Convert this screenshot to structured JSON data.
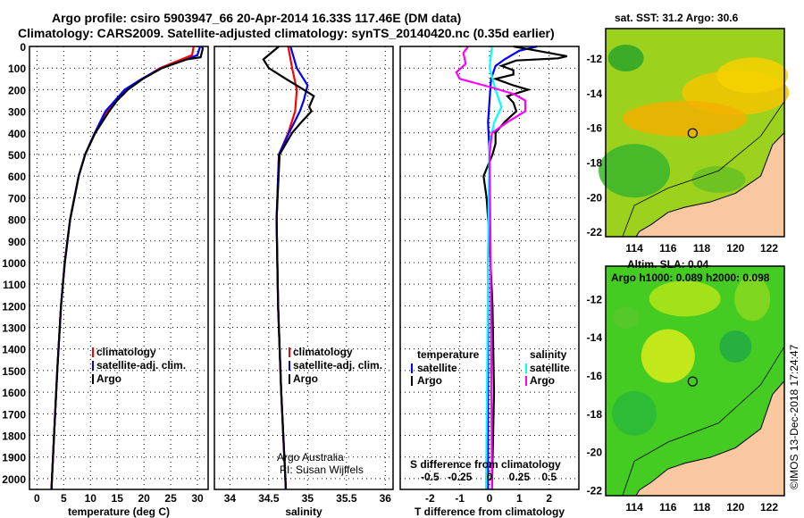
{
  "title_line1": "Argo profile: csiro 5903947_66 20-Apr-2014 16.33S 117.46E (DM data)",
  "title_line2": "Climatology: CARS2009. Satellite-adjusted climatology: synTS_20140420.nc (0.35d earlier)",
  "credit": "©IMOS 13-Dec-2018 17:24:47",
  "colors": {
    "climatology": "#ff0000",
    "satellite": "#0000ff",
    "argo": "#000000",
    "sal_sat": "#00ffff",
    "sal_argo": "#ff00ff",
    "land": "#f9c8a0"
  },
  "chart_data": [
    {
      "type": "line",
      "xlabel": "temperature (deg C)",
      "ylabel": "depth",
      "xlim": [
        -1.4,
        32
      ],
      "ylim": [
        2050,
        0
      ],
      "xticks": [
        "0",
        "5",
        "10",
        "15",
        "20",
        "25",
        "30"
      ],
      "xtickvals": [
        0,
        5,
        10,
        15,
        20,
        25,
        30
      ],
      "yticks": [
        "0",
        "100",
        "200",
        "300",
        "400",
        "500",
        "600",
        "700",
        "800",
        "900",
        "1000",
        "1100",
        "1200",
        "1300",
        "1400",
        "1500",
        "1600",
        "1700",
        "1800",
        "1900",
        "2000"
      ],
      "legend": [
        "climatology",
        "satellite-adj. clim.",
        "Argo"
      ],
      "series": [
        {
          "name": "climatology",
          "color": "#ff0000",
          "depth": [
            0,
            40,
            60,
            100,
            150,
            200,
            300,
            400,
            500,
            600,
            800,
            1000,
            1200,
            1500,
            1800,
            2050
          ],
          "values": [
            29.3,
            29,
            27,
            23,
            19.7,
            16.7,
            13.1,
            10.8,
            9,
            7.8,
            6.2,
            5.2,
            4.5,
            3.8,
            3.2,
            2.7
          ]
        },
        {
          "name": "satellite-adj. clim.",
          "color": "#0000ff",
          "depth": [
            0,
            40,
            60,
            100,
            150,
            200,
            300,
            400,
            500,
            600,
            800,
            1000,
            1200,
            1500,
            1800,
            2050
          ],
          "values": [
            30.5,
            30,
            28,
            23.3,
            19.6,
            16.4,
            12.8,
            10.8,
            9,
            7.8,
            6.2,
            5.2,
            4.5,
            3.8,
            3.2,
            2.7
          ]
        },
        {
          "name": "Argo",
          "color": "#000000",
          "depth": [
            0,
            10,
            50,
            60,
            100,
            150,
            200,
            250,
            300,
            400,
            500,
            600,
            800,
            1000,
            1200,
            1500,
            1800,
            2050
          ],
          "values": [
            30.8,
            31,
            30.6,
            28,
            23.4,
            19.8,
            17,
            15,
            13.5,
            10.9,
            9,
            7.8,
            6.2,
            5.2,
            4.5,
            3.8,
            3.2,
            2.7
          ]
        }
      ]
    },
    {
      "type": "line",
      "xlabel": "salinity",
      "xlim": [
        33.8,
        36.1
      ],
      "xticks": [
        "34",
        "34.5",
        "35",
        "35.5",
        "36"
      ],
      "xtickvals": [
        34,
        34.5,
        35,
        35.5,
        36
      ],
      "legend": [
        "climatology",
        "satellite-adj. clim.",
        "Argo"
      ],
      "annotation": [
        "Argo Australia",
        "PI: Susan Wijffels"
      ],
      "series": [
        {
          "name": "climatology",
          "color": "#ff0000",
          "depth": [
            0,
            100,
            200,
            300,
            400,
            500,
            800,
            1200,
            1600,
            2050
          ],
          "values": [
            34.75,
            34.8,
            34.86,
            34.84,
            34.75,
            34.63,
            34.6,
            34.62,
            34.66,
            34.72
          ]
        },
        {
          "name": "satellite-adj. clim.",
          "color": "#0000ff",
          "depth": [
            0,
            100,
            180,
            250,
            300,
            400,
            500,
            800,
            1200,
            1600,
            2050
          ],
          "values": [
            34.78,
            34.86,
            35.0,
            34.95,
            34.9,
            34.76,
            34.63,
            34.6,
            34.62,
            34.66,
            34.72
          ]
        },
        {
          "name": "Argo",
          "color": "#000000",
          "depth": [
            0,
            60,
            100,
            150,
            200,
            230,
            280,
            300,
            350,
            400,
            500,
            800,
            1200,
            1600,
            2050
          ],
          "values": [
            34.63,
            34.43,
            34.5,
            34.72,
            34.95,
            35.08,
            35.02,
            35.05,
            34.92,
            34.8,
            34.64,
            34.6,
            34.62,
            34.66,
            34.72
          ]
        }
      ]
    },
    {
      "type": "line",
      "xlabel": "T difference from climatology",
      "x2label": "S difference from climatology",
      "xlim": [
        -3,
        3
      ],
      "x2lim": [
        -0.75,
        0.75
      ],
      "xticks": [
        "-2",
        "-1",
        "0",
        "1",
        "2"
      ],
      "xtickvals": [
        -2,
        -1,
        0,
        1,
        2
      ],
      "x2ticks": [
        "-0.5",
        "-0.25",
        "0",
        "0.25",
        "0.5"
      ],
      "x2tickvals": [
        -0.5,
        -0.25,
        0,
        0.25,
        0.5
      ],
      "legend_temperature": {
        "title": "temperature",
        "items": [
          "satellite",
          "Argo"
        ]
      },
      "legend_salinity": {
        "title": "salinity",
        "items": [
          "satellite",
          "Argo"
        ]
      },
      "series": [
        {
          "name": "T satellite",
          "axis": "T",
          "color": "#0000ff",
          "depth": [
            0,
            20,
            60,
            90,
            150,
            250,
            350,
            500,
            1000,
            2050
          ],
          "values": [
            1.6,
            1.0,
            0.5,
            0.2,
            0.05,
            0.0,
            -0.05,
            0.0,
            -0.05,
            -0.05
          ]
        },
        {
          "name": "T Argo",
          "axis": "T",
          "color": "#000000",
          "depth": [
            0,
            20,
            45,
            55,
            65,
            90,
            110,
            130,
            150,
            180,
            200,
            230,
            260,
            300,
            350,
            400,
            450,
            500,
            600,
            700,
            900,
            1200,
            1600,
            2050
          ],
          "values": [
            0.8,
            1.6,
            2.6,
            2.3,
            0.9,
            0.4,
            0.8,
            0.8,
            0.2,
            0.8,
            1.3,
            0.6,
            0.8,
            0.9,
            0.5,
            0.2,
            0.2,
            0.1,
            -0.2,
            -0.1,
            0.0,
            0.1,
            0.15,
            0.08
          ]
        },
        {
          "name": "S satellite",
          "axis": "S",
          "color": "#00ffff",
          "depth": [
            0,
            100,
            200,
            280,
            350,
            450,
            800,
            1500,
            2050
          ],
          "values": [
            0.02,
            0.0,
            0.05,
            0.1,
            0.04,
            0.0,
            -0.01,
            -0.02,
            -0.03
          ]
        },
        {
          "name": "S Argo",
          "axis": "S",
          "color": "#ff00ff",
          "depth": [
            0,
            30,
            80,
            120,
            150,
            190,
            220,
            250,
            300,
            350,
            400,
            500,
            1000,
            2050
          ],
          "values": [
            -0.18,
            -0.22,
            -0.2,
            -0.28,
            -0.25,
            0.02,
            0.2,
            0.3,
            0.3,
            0.15,
            0.02,
            0.0,
            0.01,
            0.02
          ]
        }
      ]
    }
  ],
  "map_top": {
    "title": "sat. SST: 31.2 Argo: 30.6",
    "lat_ticks": [
      "-12",
      "-14",
      "-16",
      "-18",
      "-20",
      "-22"
    ],
    "lon_ticks": [
      "114",
      "116",
      "118",
      "120",
      "122"
    ]
  },
  "map_bottom": {
    "title1": "Altim. SLA: 0.04",
    "title2": "Argo h1000: 0.089 h2000: 0.098",
    "lat_ticks": [
      "-12",
      "-14",
      "-16",
      "-18",
      "-20",
      "-22"
    ],
    "lon_ticks": [
      "114",
      "116",
      "118",
      "120",
      "122"
    ]
  }
}
